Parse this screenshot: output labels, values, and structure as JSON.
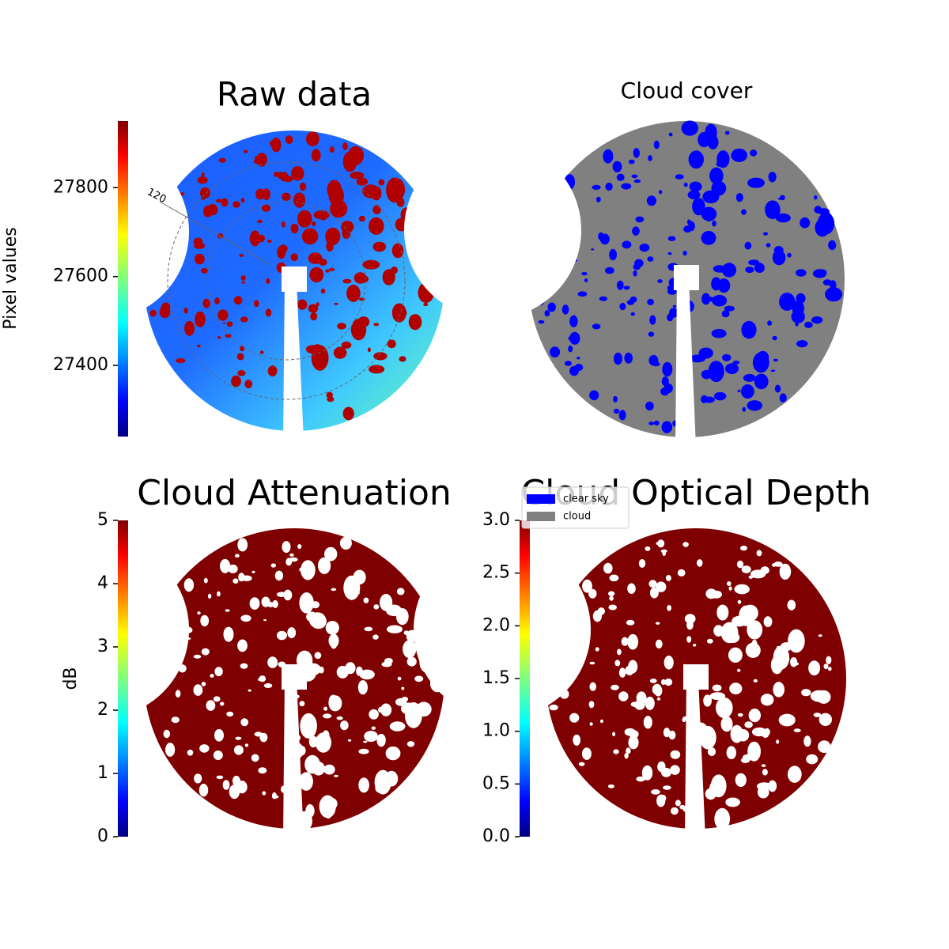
{
  "chart_data": [
    {
      "type": "image",
      "title": "Raw data",
      "colorbar_label": "Pixel values",
      "colormap": "jet",
      "clim": [
        27240,
        27950
      ],
      "cticks": [
        27400,
        27600,
        27800
      ],
      "annotations": [
        "120"
      ]
    },
    {
      "type": "image",
      "title": "Cloud cover",
      "series": [
        {
          "name": "clear sky",
          "color": "#0000ff"
        },
        {
          "name": "cloud",
          "color": "#808080"
        }
      ]
    },
    {
      "type": "image",
      "title": "Cloud Attenuation",
      "colorbar_label": "dB",
      "colormap": "jet",
      "clim": [
        0,
        5
      ],
      "cticks": [
        0,
        1,
        2,
        3,
        4,
        5
      ]
    },
    {
      "type": "image",
      "title": "Cloud Optical Depth",
      "colormap": "jet",
      "clim": [
        0,
        3
      ],
      "cticks": [
        {
          "value": 0,
          "label": "0.0"
        },
        0.5,
        {
          "value": 1,
          "label": "1.0"
        },
        1.5,
        {
          "value": 2,
          "label": "2.0"
        },
        2.5,
        {
          "value": 3,
          "label": "3.0"
        }
      ]
    }
  ]
}
